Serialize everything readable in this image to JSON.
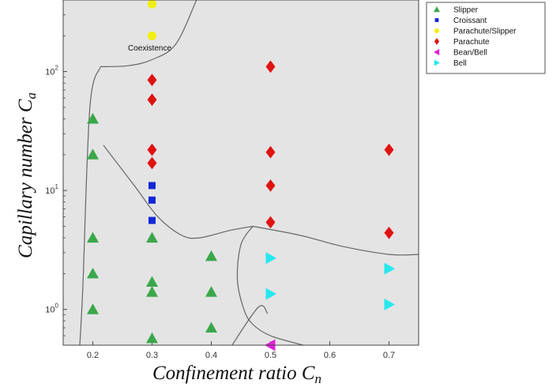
{
  "chart_data": {
    "type": "scatter",
    "xlabel": "Confinement ratio",
    "xlabel_symbol": "C",
    "xlabel_subscript": "n",
    "ylabel": "Capillary number",
    "ylabel_symbol": "C",
    "ylabel_subscript": "a",
    "xlim": [
      0.15,
      0.75
    ],
    "ylim": [
      0.5,
      400
    ],
    "yscale": "log",
    "x_ticks": [
      0.2,
      0.3,
      0.4,
      0.5,
      0.6,
      0.7
    ],
    "x_tick_labels": [
      "0.2",
      "0.3",
      "0.4",
      "0.5",
      "0.6",
      "0.7"
    ],
    "y_ticks": [
      1,
      10,
      100
    ],
    "y_tick_labels": [
      {
        "base": "10",
        "exp": "0"
      },
      {
        "base": "10",
        "exp": "1"
      },
      {
        "base": "10",
        "exp": "2"
      }
    ],
    "legend_position": "outside-top-right",
    "annotations": [
      {
        "text": "Coexistence",
        "x": 0.3,
        "y": 160
      }
    ],
    "series": [
      {
        "name": "Slipper",
        "marker": "triangle-up",
        "color": "#3aa84a",
        "points": [
          [
            0.2,
            40
          ],
          [
            0.2,
            20
          ],
          [
            0.2,
            4
          ],
          [
            0.2,
            2
          ],
          [
            0.2,
            1
          ],
          [
            0.3,
            4
          ],
          [
            0.3,
            1.7
          ],
          [
            0.3,
            1.4
          ],
          [
            0.3,
            0.57
          ],
          [
            0.4,
            2.8
          ],
          [
            0.4,
            1.4
          ],
          [
            0.4,
            0.7
          ]
        ]
      },
      {
        "name": "Croissant",
        "marker": "square",
        "color": "#1428d6",
        "points": [
          [
            0.3,
            11
          ],
          [
            0.3,
            8.3
          ],
          [
            0.3,
            5.6
          ]
        ]
      },
      {
        "name": "Parachute/Slipper",
        "marker": "circle",
        "color": "#f2ee0f",
        "points": [
          [
            0.3,
            370
          ],
          [
            0.3,
            200
          ]
        ]
      },
      {
        "name": "Parachute",
        "marker": "diamond",
        "color": "#e01212",
        "points": [
          [
            0.3,
            85
          ],
          [
            0.3,
            58
          ],
          [
            0.3,
            22
          ],
          [
            0.3,
            17
          ],
          [
            0.5,
            110
          ],
          [
            0.5,
            21
          ],
          [
            0.5,
            11
          ],
          [
            0.5,
            5.4
          ],
          [
            0.7,
            22
          ],
          [
            0.7,
            4.4
          ]
        ]
      },
      {
        "name": "Bean/Bell",
        "marker": "triangle-left",
        "color": "#e020d8",
        "points": [
          [
            0.5,
            0.5
          ]
        ]
      },
      {
        "name": "Bell",
        "marker": "triangle-right",
        "color": "#25e8ee",
        "points": [
          [
            0.5,
            2.7
          ],
          [
            0.5,
            1.35
          ],
          [
            0.7,
            2.2
          ],
          [
            0.7,
            1.1
          ]
        ]
      }
    ],
    "boundaries": [
      [
        [
          0.213,
          110
        ],
        [
          0.26,
          112
        ],
        [
          0.3,
          126
        ],
        [
          0.34,
          170
        ],
        [
          0.375,
          400
        ]
      ],
      [
        [
          0.213,
          110
        ],
        [
          0.195,
          50
        ],
        [
          0.183,
          1.5
        ],
        [
          0.178,
          0.5
        ]
      ],
      [
        [
          0.218,
          24
        ],
        [
          0.27,
          11
        ],
        [
          0.31,
          6
        ],
        [
          0.35,
          4.2
        ],
        [
          0.38,
          4.0
        ],
        [
          0.43,
          4.6
        ],
        [
          0.47,
          5.0
        ]
      ],
      [
        [
          0.47,
          5.0
        ],
        [
          0.55,
          4.2
        ],
        [
          0.62,
          3.4
        ],
        [
          0.7,
          2.9
        ],
        [
          0.75,
          2.9
        ]
      ],
      [
        [
          0.47,
          5.0
        ],
        [
          0.45,
          3.5
        ],
        [
          0.444,
          1.8
        ],
        [
          0.455,
          1.0
        ],
        [
          0.47,
          0.75
        ],
        [
          0.5,
          0.6
        ],
        [
          0.555,
          0.5
        ]
      ],
      [
        [
          0.435,
          0.5
        ],
        [
          0.48,
          1.05
        ],
        [
          0.495,
          0.92
        ]
      ]
    ]
  }
}
